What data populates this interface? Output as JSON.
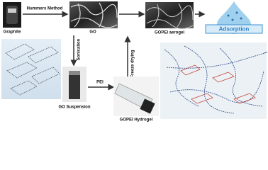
{
  "labels": {
    "hummers": "Hummers Method",
    "graphite": "Graphite",
    "go": "GO",
    "aerogel": "GOPEI aerogel",
    "adsorption": "Adsorption",
    "sonication": "Sonication",
    "freeze": "Freeze drying",
    "pei": "PEI",
    "suspension": "GO Suspension",
    "hydrogel": "GOPEI Hydrogel"
  }
}
